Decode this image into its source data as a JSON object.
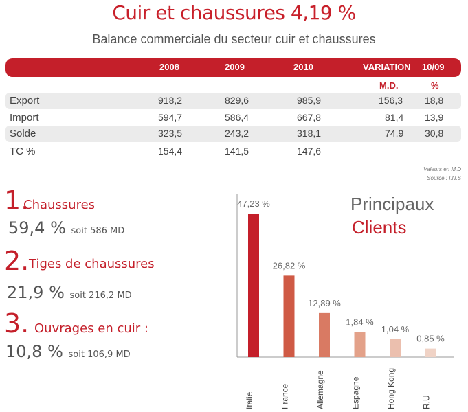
{
  "header": {
    "title": "Cuir et chaussures 4,19 %",
    "subtitle": "Balance commerciale du secteur cuir et chaussures"
  },
  "table": {
    "columns": [
      "2008",
      "2009",
      "2010",
      "VARIATION",
      "10/09"
    ],
    "subheaders": [
      "M.D.",
      "%"
    ],
    "rows": [
      {
        "label": "Export",
        "values": [
          "918,2",
          "829,6",
          "985,9",
          "156,3",
          "18,8"
        ]
      },
      {
        "label": "Import",
        "values": [
          "594,7",
          "586,4",
          "667,8",
          "81,4",
          "13,9"
        ]
      },
      {
        "label": "Solde",
        "values": [
          "323,5",
          "243,2",
          "318,1",
          "74,9",
          "30,8"
        ]
      },
      {
        "label": "TC %",
        "values": [
          "154,4",
          "141,5",
          "147,6",
          "",
          ""
        ]
      }
    ],
    "note_units": "Valeurs en M.D",
    "note_source": "Source : I.N.S"
  },
  "rankings": [
    {
      "rank": "1.",
      "label": "Chaussures",
      "pct": "59,4",
      "pct_sign": "%",
      "detail": "soit 586 MD"
    },
    {
      "rank": "2.",
      "label": "Tiges de chaussures",
      "pct": "21,9",
      "pct_sign": "%",
      "detail": "soit 216,2 MD"
    },
    {
      "rank": "3.",
      "label": "Ouvrages en cuir :",
      "pct": "10,8",
      "pct_sign": "%",
      "detail": "soit 106,9 MD"
    }
  ],
  "chart_title": {
    "line1": "Principaux",
    "line2": "Clients"
  },
  "chart_data": {
    "type": "bar",
    "categories": [
      "Italie",
      "France",
      "Allemagne",
      "Espagne",
      "Hong Kong",
      "R.U"
    ],
    "values": [
      47.23,
      26.82,
      12.89,
      1.84,
      1.04,
      0.85
    ],
    "value_labels": [
      "47,23 %",
      "26,82 %",
      "12,89 %",
      "1,84 %",
      "1,04 %",
      "0,85 %"
    ],
    "bar_heights_shown": [
      47.23,
      26.82,
      14.5,
      8.2,
      5.9,
      2.8
    ],
    "colors": [
      "#c41f2a",
      "#cf5a45",
      "#d97a63",
      "#e3a189",
      "#ebbfae",
      "#f0d3c6"
    ],
    "ylim": [
      0,
      52
    ]
  }
}
